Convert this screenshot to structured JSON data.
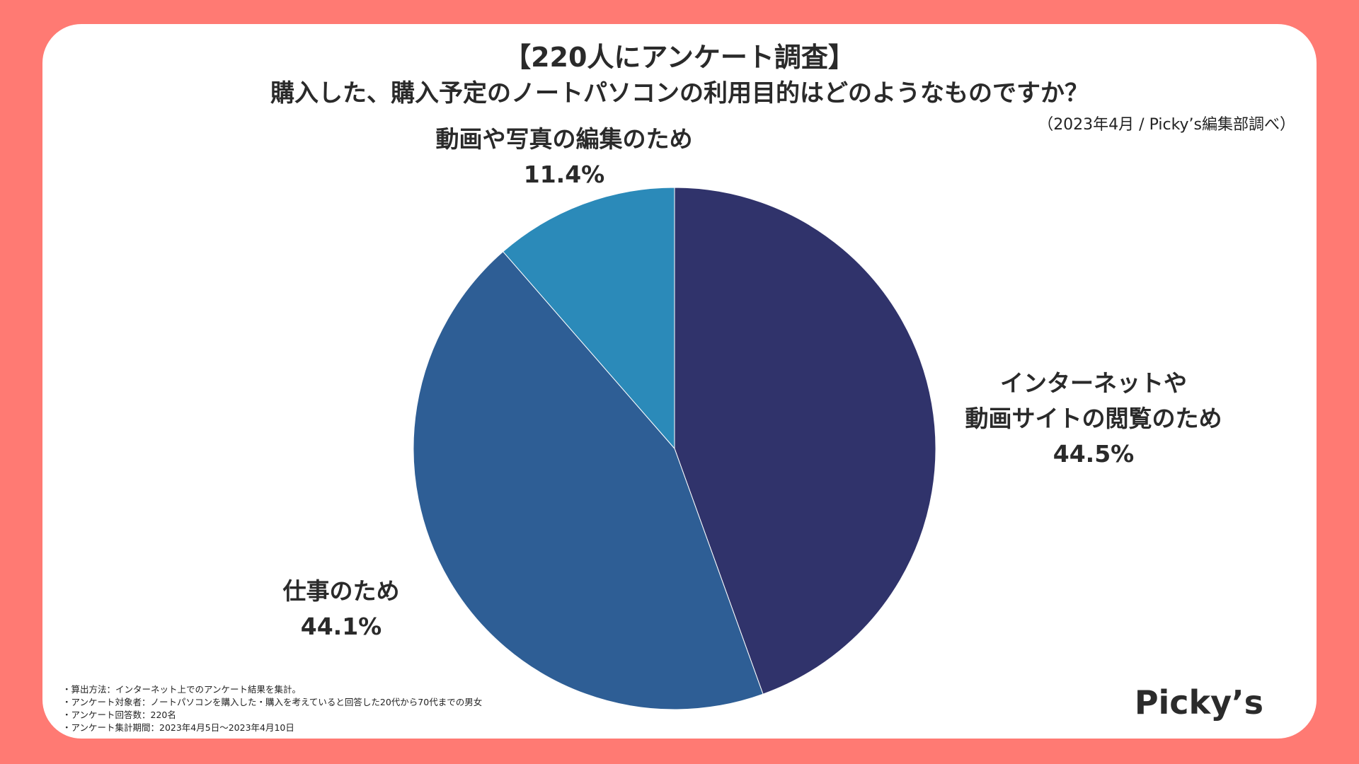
{
  "header": {
    "title_line1": "【220人にアンケート調査】",
    "title_line2": "購入した、購入予定のノートパソコンの利用目的はどのようなものですか？",
    "source": "（2023年4月 / Picky’s編集部調べ）"
  },
  "chart_data": {
    "type": "pie",
    "title": "購入した、購入予定のノートパソコンの利用目的はどのようなものですか？",
    "start": "12 o'clock",
    "direction": "clockwise",
    "slices": [
      {
        "label_lines": [
          "インターネットや",
          "動画サイトの閲覧のため"
        ],
        "value": 44.5,
        "value_label": "44.5%",
        "color": "#30336b"
      },
      {
        "label_lines": [
          "仕事のため"
        ],
        "value": 44.1,
        "value_label": "44.1%",
        "color": "#2e5e95"
      },
      {
        "label_lines": [
          "動画や写真の編集のため"
        ],
        "value": 11.4,
        "value_label": "11.4%",
        "color": "#2b8ab9"
      }
    ]
  },
  "notes": [
    "・算出方法：インターネット上でのアンケート結果を集計。",
    "・アンケート対象者：ノートパソコンを購入した・購入を考えていると回答した20代から70代までの男女",
    "・アンケート回答数：220名",
    "・アンケート集計期間：2023年4月5日〜2023年4月10日"
  ],
  "logo": {
    "text": "Picky’s"
  },
  "colors": {
    "background": "#ff7a73",
    "card": "#ffffff"
  }
}
